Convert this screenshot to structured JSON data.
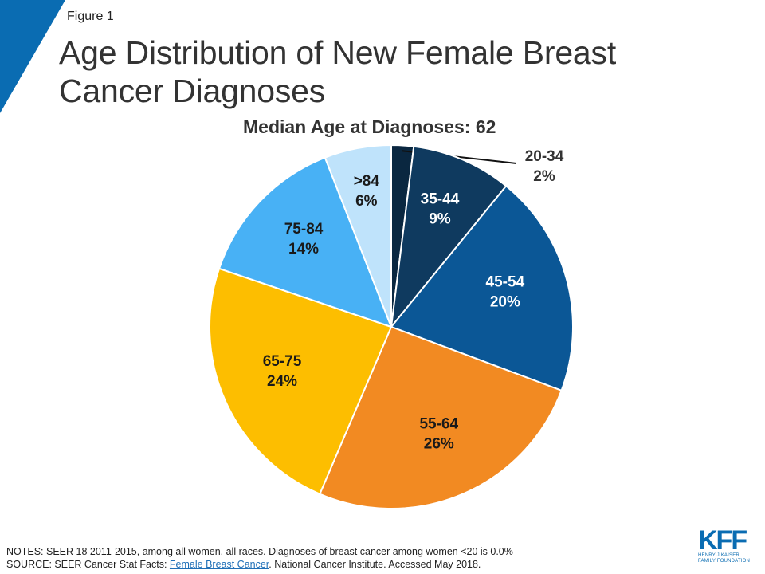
{
  "figure_label": "Figure 1",
  "title": "Age Distribution of New Female Breast Cancer Diagnoses",
  "subtitle": "Median Age at Diagnoses: 62",
  "colors": {
    "corner_accent": "#0a6cb2",
    "slices": [
      "#0a2740",
      "#0f3a5f",
      "#0b5796",
      "#f28a22",
      "#fdbe00",
      "#48b1f5",
      "#bfe3fb"
    ]
  },
  "chart_data": {
    "type": "pie",
    "title": "Age Distribution of New Female Breast Cancer Diagnoses",
    "subtitle": "Median Age at Diagnoses: 62",
    "categories": [
      "20-34",
      "35-44",
      "45-54",
      "55-64",
      "65-75",
      "75-84",
      ">84"
    ],
    "values": [
      2,
      9,
      20,
      26,
      24,
      14,
      6
    ],
    "value_labels": [
      "2%",
      "9%",
      "20%",
      "26%",
      "24%",
      "14%",
      "6%"
    ],
    "start": "12 o'clock, clockwise",
    "label_placement": "inside slices; 20-34 label outside with leader line"
  },
  "notes": {
    "notes_text": "NOTES: SEER 18 2011-2015,  among all women, all races. Diagnoses of breast cancer among women  <20 is 0.0%",
    "source_prefix": "SOURCE: SEER Cancer Stat Facts: ",
    "source_link": "Female Breast Cancer",
    "source_suffix": ". National Cancer Institute. Accessed May 2018."
  },
  "logo": {
    "mark": "KFF",
    "line1": "HENRY J KAISER",
    "line2": "FAMILY FOUNDATION"
  }
}
